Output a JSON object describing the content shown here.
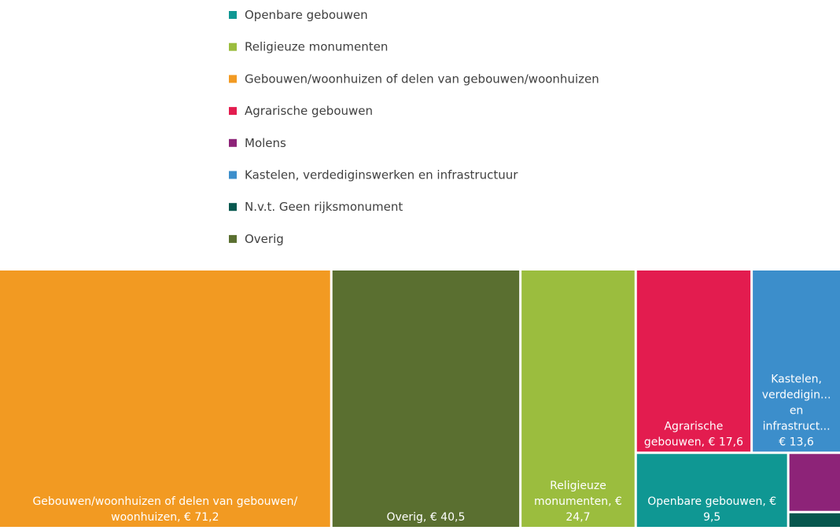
{
  "chart_data": {
    "type": "treemap",
    "series": [
      {
        "name": "Openbare gebouwen",
        "color": "#0f9793",
        "values": [
          9.5
        ],
        "value_labels": [
          "Openbare gebouwen, € 9,5"
        ]
      },
      {
        "name": "Religieuze monumenten",
        "color": "#9bbd3e",
        "values": [
          24.7
        ],
        "value_labels": [
          "Religieuze monumenten, € 24,7"
        ]
      },
      {
        "name": "Gebouwen/woonhuizen of delen van gebouwen/woonhuizen",
        "color": "#f29a22",
        "values": [
          71.2
        ],
        "value_labels": [
          "Gebouwen/woonhuizen of delen van gebouwen/ woonhuizen, € 71,2"
        ]
      },
      {
        "name": "Agrarische gebouwen",
        "color": "#e31c4f",
        "values": [
          17.6
        ],
        "value_labels": [
          "Agrarische gebouwen, € 17,6"
        ]
      },
      {
        "name": "Molens",
        "color": "#8d2378",
        "values": [
          2.6
        ],
        "value_labels": [
          null
        ]
      },
      {
        "name": "Kastelen, verdediginswerken en infrastructuur",
        "color": "#3c8ecb",
        "values": [
          13.6
        ],
        "value_labels": [
          "Kastelen, verdedigin... en infrastruct... € 13,6"
        ]
      },
      {
        "name": "N.v.t. Geen rijksmonument",
        "color": "#07574e",
        "values": [
          0.7
        ],
        "value_labels": [
          null
        ]
      },
      {
        "name": "Overig",
        "color": "#5a6f30",
        "values": [
          40.5
        ],
        "value_labels": [
          "Overig, € 40,5"
        ]
      }
    ]
  }
}
